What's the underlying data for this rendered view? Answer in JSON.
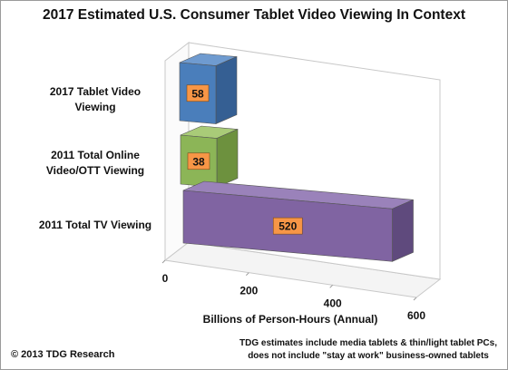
{
  "chart_data": {
    "type": "bar",
    "orientation": "horizontal",
    "three_d": true,
    "title": "2017 Estimated U.S. Consumer Tablet Video Viewing In Context",
    "xlabel": "Billions of Person-Hours  (Annual)",
    "ylabel": "",
    "xlim": [
      0,
      600
    ],
    "ticks": [
      "0",
      "200",
      "400",
      "600"
    ],
    "tick_values": [
      0,
      200,
      400,
      600
    ],
    "categories": [
      {
        "line1": "2017 Tablet Video",
        "line2": "Viewing"
      },
      {
        "line1": "2011 Total Online",
        "line2": "Video/OTT Viewing"
      },
      {
        "line1": "2011 Total TV Viewing",
        "line2": ""
      }
    ],
    "values": [
      58,
      38,
      520
    ],
    "bar_colors": [
      {
        "front": "#4a7ebb",
        "top": "#6f9bd0",
        "side": "#355f93"
      },
      {
        "front": "#8cb557",
        "top": "#a9cb78",
        "side": "#6d913e"
      },
      {
        "front": "#8064a2",
        "top": "#9a82ba",
        "side": "#5f4a7d"
      }
    ],
    "label_box_color": "#f79646",
    "grid": false,
    "legend": "none"
  },
  "footer": {
    "copyright": "© 2013 TDG Research",
    "note_line1": "TDG estimates include media tablets & thin/light tablet PCs,",
    "note_line2": "does not include \"stay at work\" business-owned tablets"
  }
}
